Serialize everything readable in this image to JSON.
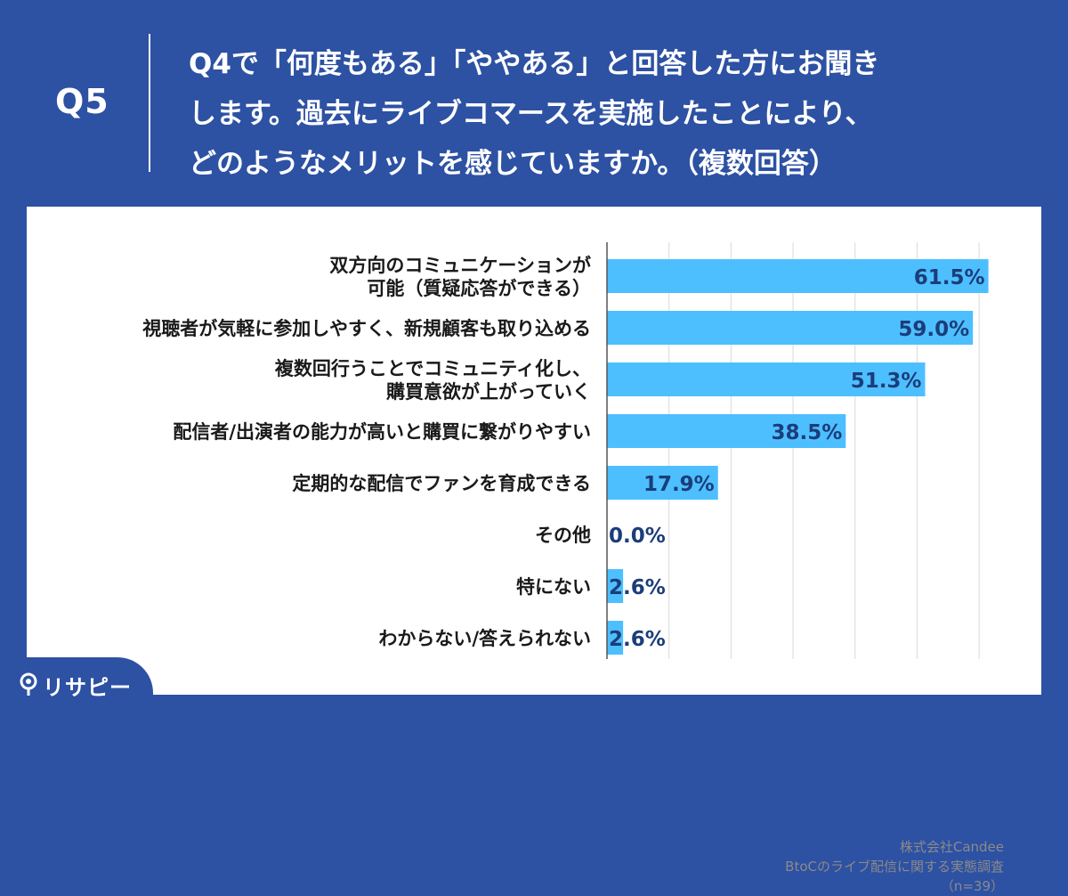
{
  "header": {
    "question_no": "Q5",
    "question_text": "Q4で「何度もある」「ややある」と回答した方にお聞き\nします。過去にライブコマースを実施したことにより、\nどのようなメリットを感じていますか。（複数回答）"
  },
  "source": {
    "company": "株式会社Candee",
    "survey": "BtoCのライブ配信に関する実態調査",
    "n": "（n=39）"
  },
  "brand": {
    "name": "リサピー"
  },
  "colors": {
    "background": "#2d51a3",
    "bar": "#4dbfff",
    "value_text": "#1b3d7a",
    "grid": "#d9d9d9",
    "axis": "#555555"
  },
  "chart_data": {
    "type": "bar",
    "orientation": "horizontal",
    "categories": [
      "双方向のコミュニケーションが\n可能（質疑応答ができる）",
      "視聴者が気軽に参加しやすく、新規顧客も取り込める",
      "複数回行うことでコミュニティ化し、\n購買意欲が上がっていく",
      "配信者/出演者の能力が高いと購買に繋がりやすい",
      "定期的な配信でファンを育成できる",
      "その他",
      "特にない",
      "わからない/答えられない"
    ],
    "values": [
      61.5,
      59.0,
      51.3,
      38.5,
      17.9,
      0.0,
      2.6,
      2.6
    ],
    "value_labels": [
      "61.5%",
      "59.0%",
      "51.3%",
      "38.5%",
      "17.9%",
      "0.0%",
      "2.6%",
      "2.6%"
    ],
    "xlim": [
      0,
      70
    ],
    "grid": true
  }
}
